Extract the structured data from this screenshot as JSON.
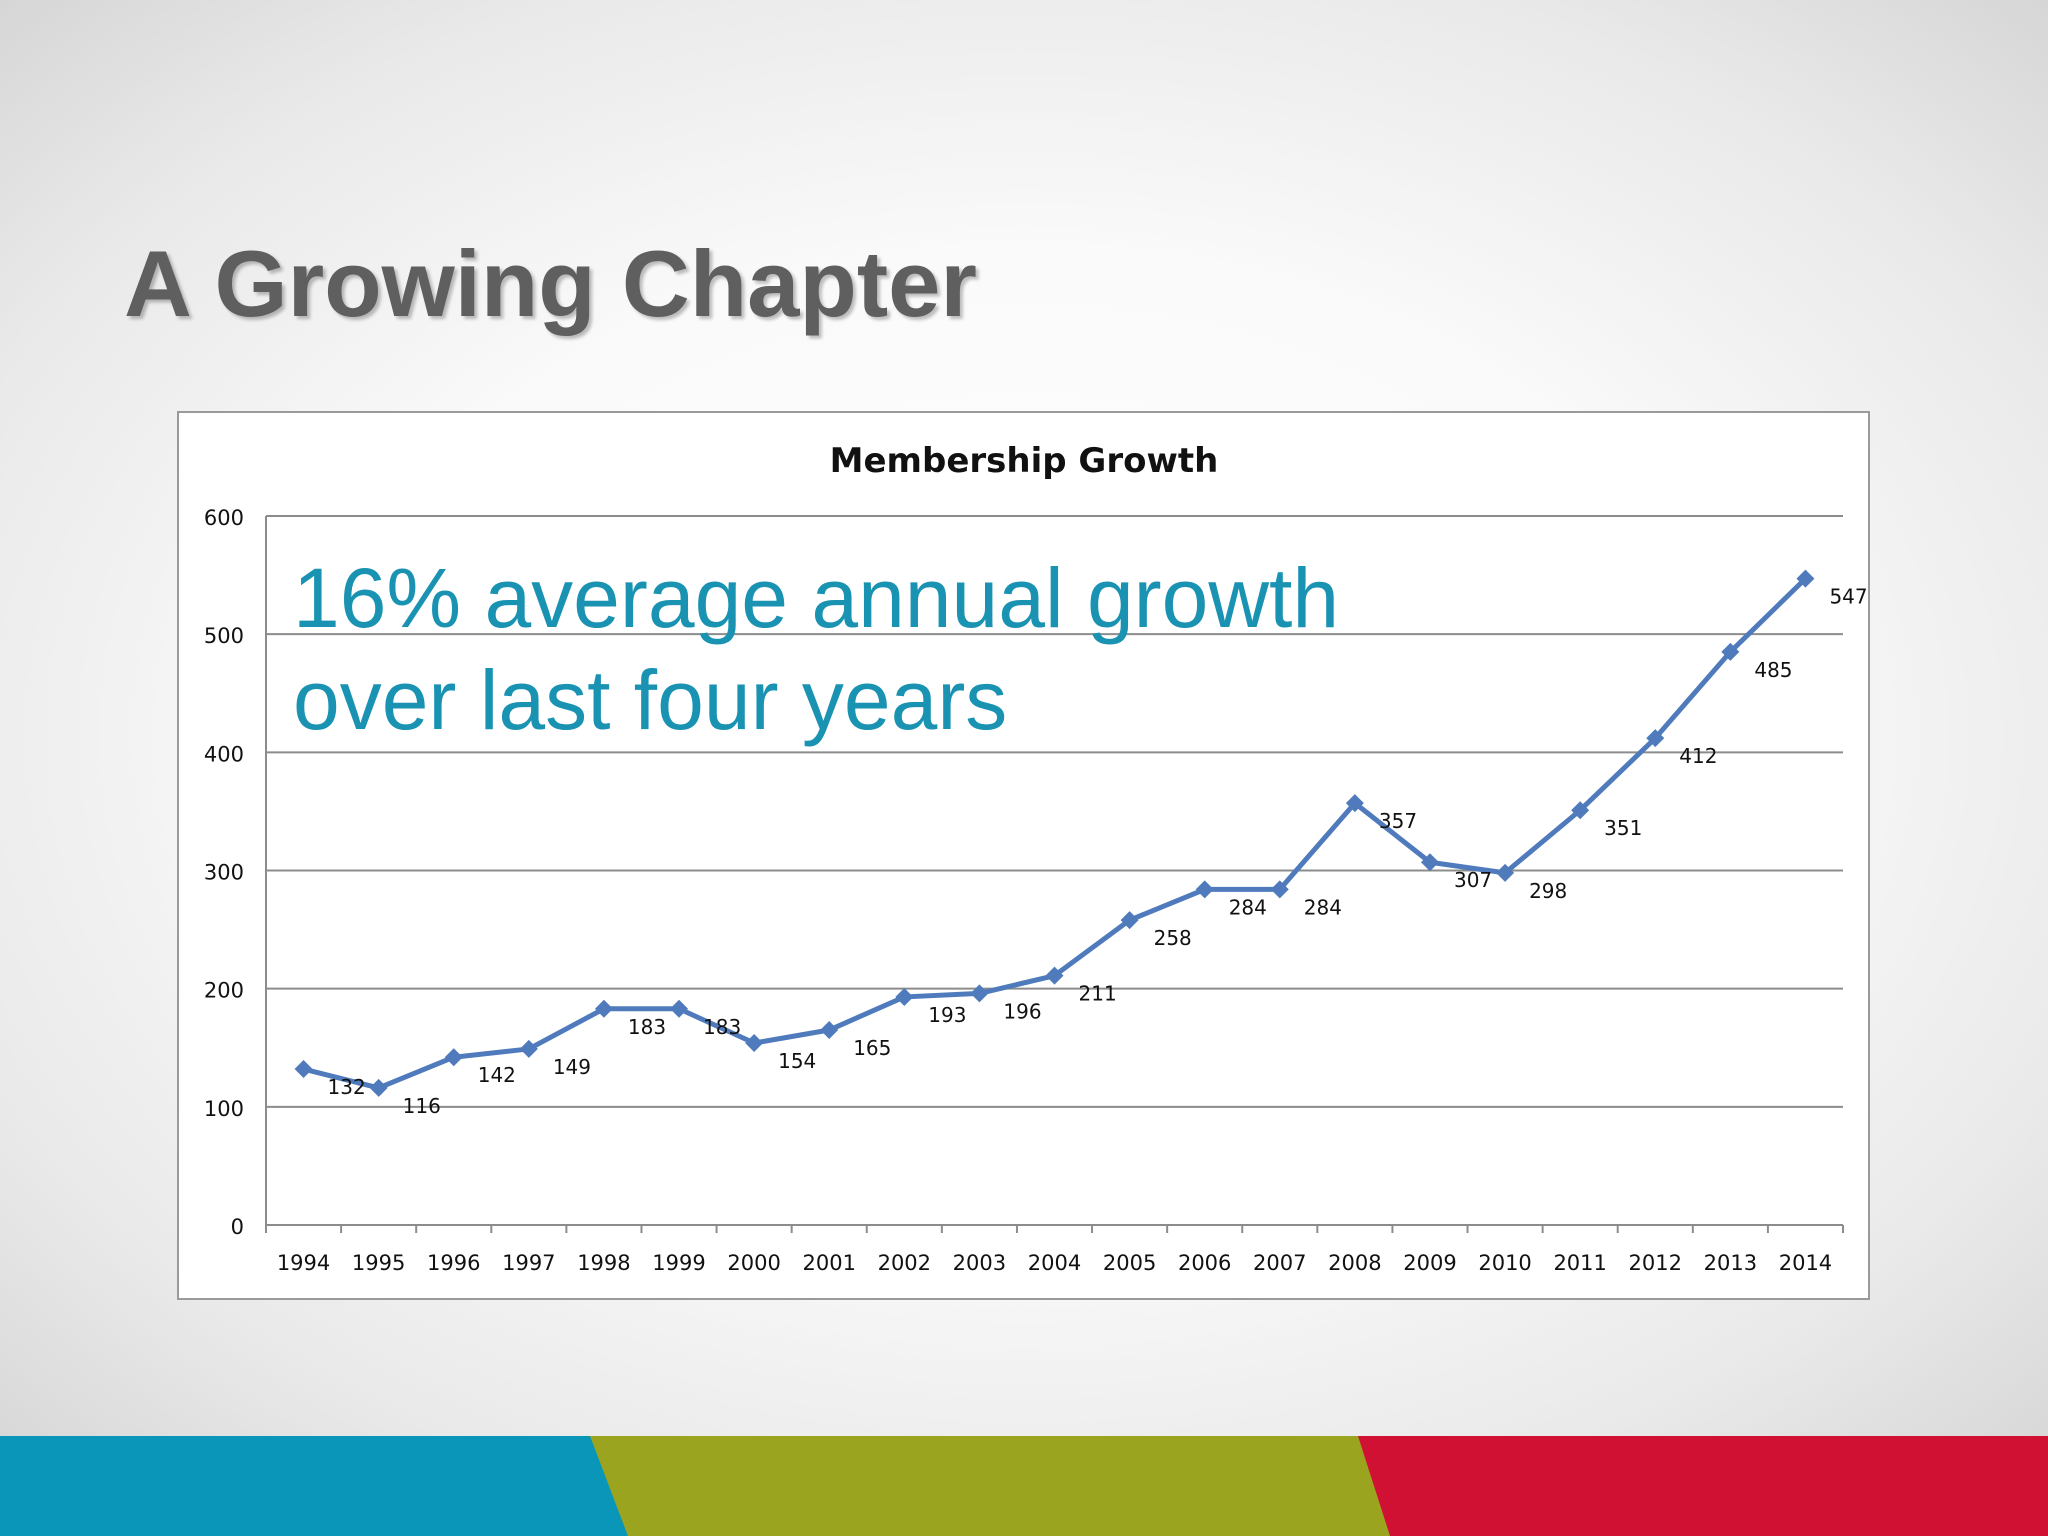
{
  "slide": {
    "title": "A Growing Chapter",
    "callout_line1": "16% average annual growth",
    "callout_line2": "over last four years"
  },
  "colors": {
    "title": "#5f5f5f",
    "callout": "#1a93b3",
    "series": "#4f7bbd",
    "band_blue": "#0a96b9",
    "band_green": "#9aa41f",
    "band_red": "#d01134"
  },
  "chart_data": {
    "type": "line",
    "title": "Membership Growth",
    "xlabel": "",
    "ylabel": "",
    "ylim": [
      0,
      600
    ],
    "yticks": [
      0,
      100,
      200,
      300,
      400,
      500,
      600
    ],
    "grid": true,
    "categories": [
      "1994",
      "1995",
      "1996",
      "1997",
      "1998",
      "1999",
      "2000",
      "2001",
      "2002",
      "2003",
      "2004",
      "2005",
      "2006",
      "2007",
      "2008",
      "2009",
      "2010",
      "2011",
      "2012",
      "2013",
      "2014"
    ],
    "series": [
      {
        "values": [
          132,
          116,
          142,
          149,
          183,
          183,
          154,
          165,
          193,
          196,
          211,
          258,
          284,
          284,
          357,
          307,
          298,
          351,
          412,
          485,
          547
        ],
        "marker": "diamond",
        "data_labels": true
      }
    ]
  }
}
